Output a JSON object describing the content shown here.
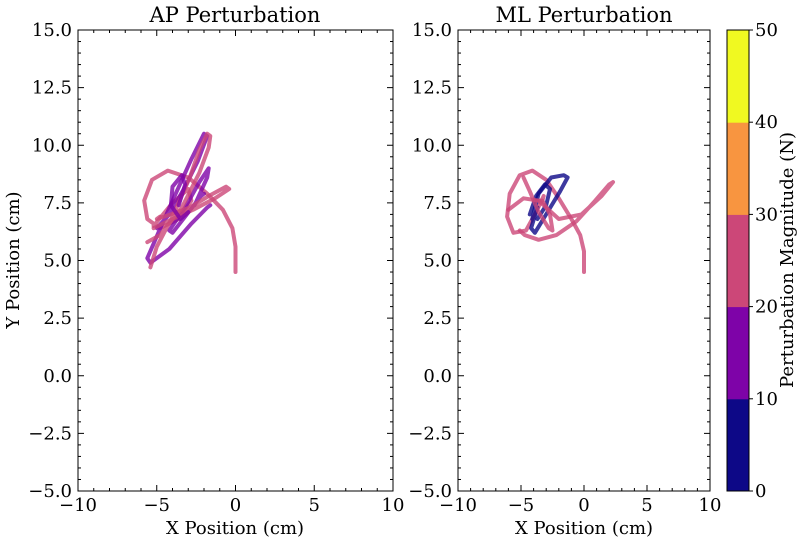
{
  "colors": {
    "bin_0_10": "#0d0887",
    "bin_10_20": "#7e03a8",
    "bin_20_30": "#cc4778",
    "bin_30_40": "#f89540",
    "bin_40_50": "#f0f921"
  },
  "chart_data": [
    {
      "type": "line",
      "title": "AP Perturbation",
      "xlabel": "X Position (cm)",
      "ylabel": "Y Position (cm)",
      "xlim": [
        -10,
        10
      ],
      "ylim": [
        -5,
        15
      ],
      "xticks": [
        "−10",
        "−5",
        "0",
        "5",
        "10"
      ],
      "yticks": [
        "−5.0",
        "−2.5",
        "0.0",
        "2.5",
        "5.0",
        "7.5",
        "10.0",
        "12.5",
        "15.0"
      ],
      "series": [
        {
          "color": "bin_20_30",
          "points": [
            [
              0,
              4.5
            ],
            [
              0,
              5.6
            ],
            [
              -0.2,
              6.4
            ],
            [
              -0.8,
              7.2
            ],
            [
              -1.8,
              7.9
            ],
            [
              -3.0,
              8.6
            ],
            [
              -4.3,
              8.9
            ],
            [
              -5.3,
              8.5
            ],
            [
              -5.8,
              7.6
            ],
            [
              -5.6,
              6.8
            ],
            [
              -4.8,
              6.4
            ],
            [
              -3.6,
              6.8
            ],
            [
              -2.8,
              7.6
            ],
            [
              -3.0,
              8.1
            ],
            [
              -4.0,
              7.5
            ],
            [
              -5.2,
              6.5
            ]
          ]
        },
        {
          "color": "bin_10_20",
          "points": [
            [
              -5.0,
              6.4
            ],
            [
              -4.2,
              7.0
            ],
            [
              -3.2,
              8.2
            ],
            [
              -2.4,
              9.3
            ],
            [
              -1.8,
              10.4
            ],
            [
              -2.0,
              10.5
            ],
            [
              -2.8,
              9.4
            ],
            [
              -3.8,
              7.9
            ],
            [
              -4.9,
              6.2
            ],
            [
              -5.6,
              5.1
            ],
            [
              -5.4,
              4.9
            ],
            [
              -4.2,
              5.5
            ],
            [
              -2.8,
              6.6
            ],
            [
              -1.8,
              7.3
            ],
            [
              -1.6,
              7.4
            ]
          ]
        },
        {
          "color": "bin_10_20",
          "points": [
            [
              -2.6,
              7.4
            ],
            [
              -1.8,
              8.6
            ],
            [
              -1.7,
              9.0
            ],
            [
              -2.3,
              8.4
            ],
            [
              -3.2,
              7.3
            ],
            [
              -4.2,
              6.3
            ],
            [
              -4.0,
              6.2
            ],
            [
              -3.2,
              6.9
            ],
            [
              -2.2,
              7.8
            ],
            [
              -2.0,
              7.9
            ]
          ]
        },
        {
          "color": "bin_20_30",
          "points": [
            [
              -5.4,
              4.7
            ],
            [
              -5.0,
              5.6
            ],
            [
              -4.0,
              6.9
            ],
            [
              -2.9,
              8.6
            ],
            [
              -2.3,
              9.8
            ],
            [
              -1.8,
              10.5
            ],
            [
              -1.6,
              10.4
            ],
            [
              -1.7,
              9.9
            ],
            [
              -2.3,
              8.8
            ],
            [
              -3.4,
              7.3
            ],
            [
              -4.8,
              6.1
            ],
            [
              -5.6,
              5.8
            ]
          ]
        },
        {
          "color": "bin_20_30",
          "points": [
            [
              -5.2,
              6.4
            ],
            [
              -4.0,
              6.8
            ],
            [
              -2.7,
              7.2
            ],
            [
              -1.3,
              7.7
            ],
            [
              -0.4,
              8.1
            ],
            [
              -0.6,
              8.2
            ],
            [
              -1.7,
              7.8
            ],
            [
              -2.9,
              7.3
            ],
            [
              -4.1,
              7.0
            ],
            [
              -5.0,
              6.8
            ],
            [
              -4.8,
              6.9
            ]
          ]
        },
        {
          "color": "bin_10_20",
          "points": [
            [
              -3.6,
              7.4
            ],
            [
              -3.2,
              8.3
            ],
            [
              -3.4,
              8.7
            ],
            [
              -4.0,
              8.2
            ],
            [
              -4.1,
              7.4
            ],
            [
              -3.5,
              6.8
            ],
            [
              -3.0,
              7.1
            ]
          ]
        }
      ]
    },
    {
      "type": "line",
      "title": "ML Perturbation",
      "xlabel": "X Position (cm)",
      "ylabel": "",
      "xlim": [
        -10,
        10
      ],
      "ylim": [
        -5,
        15
      ],
      "xticks": [
        "−10",
        "−5",
        "0",
        "5",
        "10"
      ],
      "yticks": [
        "−5.0",
        "−2.5",
        "0.0",
        "2.5",
        "5.0",
        "7.5",
        "10.0",
        "12.5",
        "15.0"
      ],
      "series": [
        {
          "color": "bin_20_30",
          "points": [
            [
              0,
              4.5
            ],
            [
              0,
              5.4
            ],
            [
              -0.3,
              6.1
            ],
            [
              -1.0,
              6.8
            ],
            [
              -2.0,
              7.7
            ],
            [
              -3.0,
              8.5
            ],
            [
              -4.1,
              8.9
            ],
            [
              -5.1,
              8.7
            ],
            [
              -5.9,
              7.9
            ],
            [
              -6.1,
              6.9
            ],
            [
              -5.6,
              6.2
            ],
            [
              -4.6,
              6.3
            ],
            [
              -3.8,
              7.1
            ],
            [
              -3.2,
              7.8
            ],
            [
              -3.3,
              7.6
            ]
          ]
        },
        {
          "color": "bin_0_10",
          "points": [
            [
              -4.1,
              6.8
            ],
            [
              -3.6,
              7.9
            ],
            [
              -2.6,
              8.6
            ],
            [
              -1.6,
              8.7
            ],
            [
              -1.3,
              8.6
            ],
            [
              -1.9,
              8.0
            ],
            [
              -2.9,
              7.1
            ],
            [
              -3.9,
              6.2
            ],
            [
              -4.2,
              6.4
            ],
            [
              -3.7,
              7.3
            ]
          ]
        },
        {
          "color": "bin_0_10",
          "points": [
            [
              -4.3,
              7.0
            ],
            [
              -3.8,
              7.8
            ],
            [
              -3.1,
              8.3
            ],
            [
              -2.7,
              8.1
            ],
            [
              -3.0,
              7.4
            ],
            [
              -3.7,
              6.8
            ]
          ]
        },
        {
          "color": "bin_20_30",
          "points": [
            [
              -6.0,
              7.2
            ],
            [
              -4.8,
              7.7
            ],
            [
              -3.6,
              7.6
            ],
            [
              -2.0,
              6.8
            ],
            [
              -0.2,
              7.0
            ],
            [
              1.4,
              7.8
            ],
            [
              2.3,
              8.4
            ],
            [
              2.0,
              8.3
            ],
            [
              0.9,
              7.6
            ],
            [
              -0.6,
              6.7
            ],
            [
              -2.2,
              6.1
            ],
            [
              -3.6,
              5.9
            ],
            [
              -4.7,
              6.1
            ],
            [
              -5.1,
              6.3
            ]
          ]
        },
        {
          "color": "bin_20_30",
          "points": [
            [
              -4.8,
              8.6
            ],
            [
              -4.3,
              8.0
            ],
            [
              -3.6,
              7.1
            ],
            [
              -2.8,
              6.4
            ],
            [
              -2.5,
              6.3
            ],
            [
              -2.7,
              7.0
            ],
            [
              -3.3,
              7.6
            ],
            [
              -4.0,
              7.6
            ]
          ]
        }
      ]
    }
  ],
  "colorbar": {
    "label": "Perturbation Magnitude (N)",
    "ticks": [
      "0",
      "10",
      "20",
      "30",
      "40",
      "50"
    ],
    "bins": [
      "bin_0_10",
      "bin_10_20",
      "bin_20_30",
      "bin_30_40",
      "bin_40_50"
    ]
  }
}
